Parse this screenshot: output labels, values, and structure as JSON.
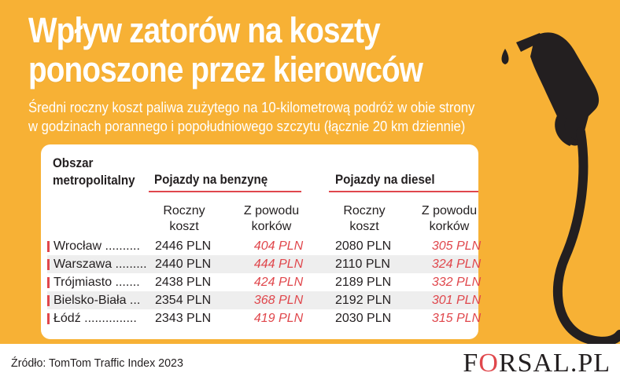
{
  "title": {
    "line1": "Wpływ zatorów na koszty",
    "line2": "ponoszone przez kierowców"
  },
  "subtitle": {
    "line1": "Średni roczny koszt paliwa zużytego na 10-kilometrową podróż w obie strony",
    "line2": "w godzinach porannego i popołudniowego szczytu (łącznie 20 km dziennie)"
  },
  "table": {
    "area_header_line1": "Obszar",
    "area_header_line2": "metropolitalny",
    "benzyna_header": "Pojazdy na benzynę",
    "diesel_header": "Pojazdy na diesel",
    "sub_cost_line1": "Roczny",
    "sub_cost_line2": "koszt",
    "sub_jam_line1": "Z powodu",
    "sub_jam_line2": "korków",
    "rows": [
      {
        "city": "Wrocław ..........",
        "benzyna_cost": "2446 PLN",
        "benzyna_jam": "404 PLN",
        "diesel_cost": "2080 PLN",
        "diesel_jam": "305 PLN"
      },
      {
        "city": "Warszawa .........",
        "benzyna_cost": "2440 PLN",
        "benzyna_jam": "444 PLN",
        "diesel_cost": "2110 PLN",
        "diesel_jam": "324 PLN"
      },
      {
        "city": "Trójmiasto .......",
        "benzyna_cost": "2438 PLN",
        "benzyna_jam": "424 PLN",
        "diesel_cost": "2189 PLN",
        "diesel_jam": "332 PLN"
      },
      {
        "city": "Bielsko-Biała ...",
        "benzyna_cost": "2354 PLN",
        "benzyna_jam": "368 PLN",
        "diesel_cost": "2192 PLN",
        "diesel_jam": "301 PLN"
      },
      {
        "city": "Łódź ...............",
        "benzyna_cost": "2343 PLN",
        "benzyna_jam": "419 PLN",
        "diesel_cost": "2030 PLN",
        "diesel_jam": "315 PLN"
      }
    ]
  },
  "source": "Źródło: TomTom Traffic Index 2023",
  "logo": {
    "part1": "F",
    "accent": "O",
    "part2": "RSAL.PL"
  },
  "colors": {
    "background": "#f7b135",
    "accent": "#e0474c",
    "text": "#231f20"
  },
  "icons": {
    "pump": "fuel-pump-nozzle-icon"
  }
}
